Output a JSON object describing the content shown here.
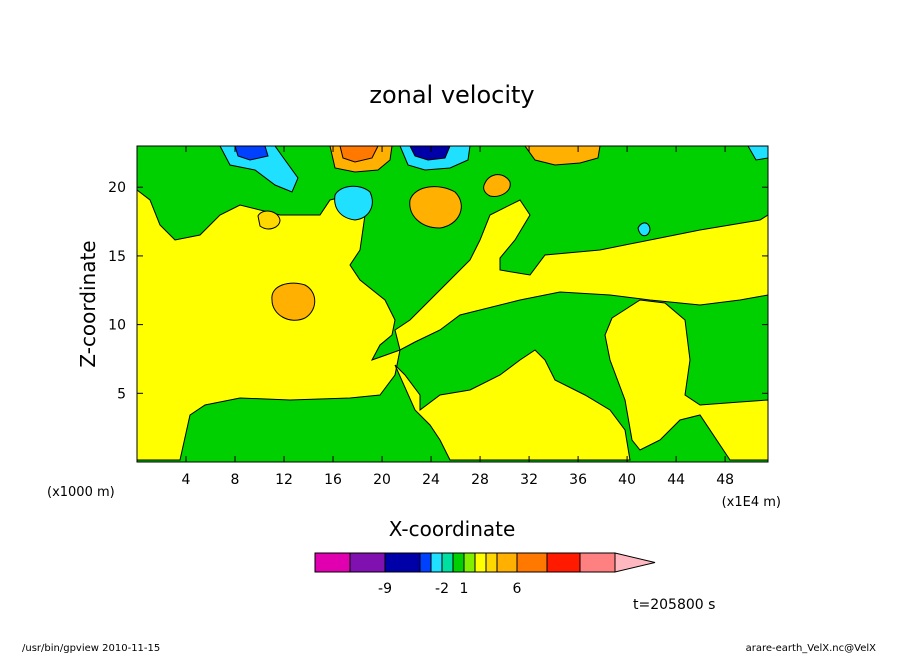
{
  "chart_data": {
    "type": "heatmap",
    "title": "zonal velocity",
    "xlabel": "X-coordinate",
    "ylabel": "Z-coordinate",
    "x_unit_label": "(x1000 m)",
    "x_scale_label": "(x1E4 m)",
    "xlim": [
      0,
      51.5
    ],
    "ylim": [
      0,
      23
    ],
    "x_ticks": [
      4,
      8,
      12,
      16,
      20,
      24,
      28,
      32,
      36,
      40,
      44,
      48
    ],
    "y_ticks": [
      5,
      10,
      15,
      20
    ],
    "colorbar": {
      "colors": [
        "#e000b0",
        "#8010b0",
        "#0000a8",
        "#0040ff",
        "#20e0ff",
        "#00e0a0",
        "#00d000",
        "#80f000",
        "#ffff00",
        "#ffd800",
        "#ffb000",
        "#ff7800",
        "#ff1a00",
        "#ff8080",
        "#ffb8c0"
      ],
      "labels": [
        "-9",
        "-2",
        "1",
        "6"
      ],
      "label_after_segment": [
        1,
        4,
        6,
        10
      ]
    },
    "time_label": "t=205800 s"
  },
  "footer": {
    "left": "/usr/bin/gpview  2010-11-15",
    "right": "arare-earth_VelX.nc@VelX"
  }
}
